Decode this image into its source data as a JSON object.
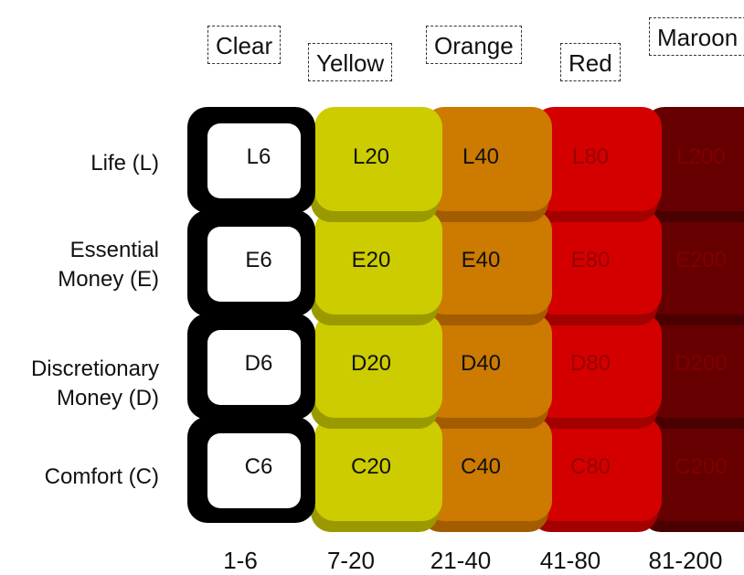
{
  "columns": [
    {
      "name": "Clear",
      "range": "1-6",
      "color": "#ffffff",
      "shade": "#000000",
      "text_color": "#111111"
    },
    {
      "name": "Yellow",
      "range": "7-20",
      "color": "#cccc00",
      "shade": "#9a9a00",
      "text_color": "#111111"
    },
    {
      "name": "Orange",
      "range": "21-40",
      "color": "#cc7a00",
      "shade": "#a35d00",
      "text_color": "#111111"
    },
    {
      "name": "Red",
      "range": "41-80",
      "color": "#d40000",
      "shade": "#a30000",
      "text_color": "#990000"
    },
    {
      "name": "Maroon",
      "range": "81-200",
      "color": "#660000",
      "shade": "#4a0000",
      "text_color": "#800000"
    }
  ],
  "rows": [
    {
      "label_line1": "Life (L)",
      "label_line2": ""
    },
    {
      "label_line1": "Essential",
      "label_line2": "Money (E)"
    },
    {
      "label_line1": "Discretionary",
      "label_line2": "Money (D)"
    },
    {
      "label_line1": "Comfort (C)",
      "label_line2": ""
    }
  ],
  "cells": [
    [
      "L6",
      "L20",
      "L40",
      "L80",
      "L200"
    ],
    [
      "E6",
      "E20",
      "E40",
      "E80",
      "E200"
    ],
    [
      "D6",
      "D20",
      "D40",
      "D80",
      "D200"
    ],
    [
      "C6",
      "C20",
      "C40",
      "C80",
      "C200"
    ]
  ]
}
